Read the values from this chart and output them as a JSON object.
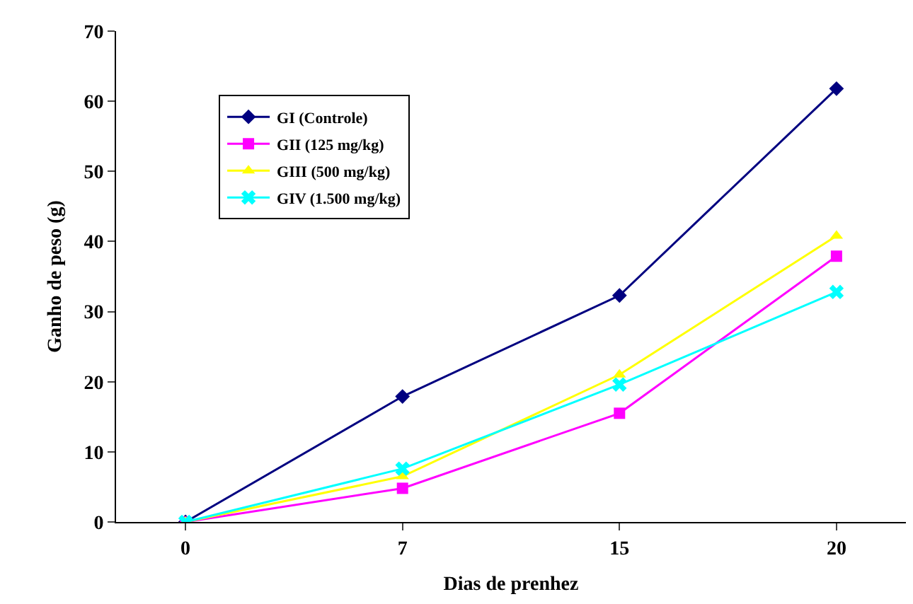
{
  "chart_data": {
    "type": "line",
    "xlabel": "Dias de prenhez",
    "ylabel": "Ganho de peso (g)",
    "categories": [
      "0",
      "7",
      "15",
      "20"
    ],
    "ylim": [
      0,
      70
    ],
    "yticks": [
      0,
      10,
      20,
      30,
      40,
      50,
      60,
      70
    ],
    "grid": false,
    "legend": "top left",
    "series": [
      {
        "name": "GI (Controle)",
        "color": "#000080",
        "marker": "diamond",
        "values": [
          0,
          17.9,
          32.3,
          61.8
        ]
      },
      {
        "name": "GII (125 mg/kg)",
        "color": "#ff00ff",
        "marker": "square",
        "values": [
          0,
          4.8,
          15.5,
          37.9
        ]
      },
      {
        "name": "GIII (500 mg/kg)",
        "color": "#ffff00",
        "marker": "triangle",
        "values": [
          0,
          6.5,
          21,
          40.8
        ]
      },
      {
        "name": "GIV (1.500 mg/kg)",
        "color": "#00ffff",
        "marker": "cross",
        "values": [
          0,
          7.6,
          19.6,
          32.8
        ]
      }
    ]
  }
}
